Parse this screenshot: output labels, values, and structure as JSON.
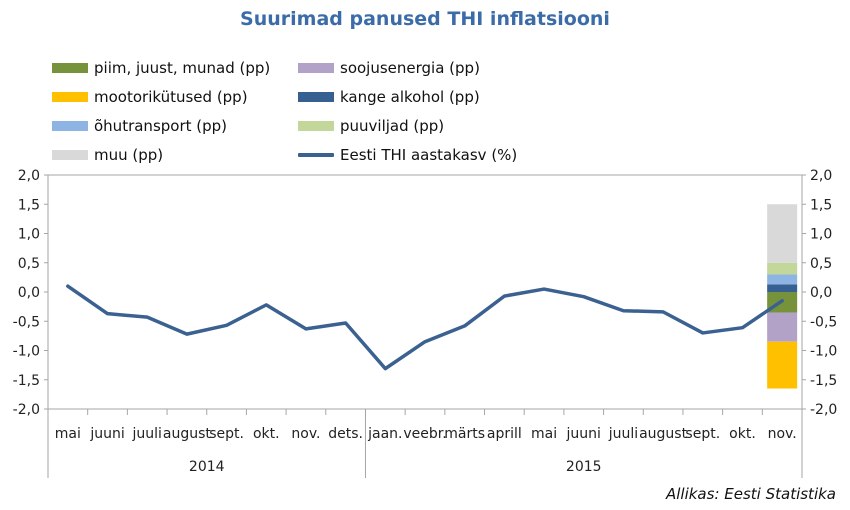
{
  "chart_data": {
    "type": "bar+line",
    "title": "Suurimad panused THI inflatsiooni",
    "source": "Allikas: Eesti Statistika",
    "categories": [
      "mai",
      "juuni",
      "juuli",
      "august",
      "sept.",
      "okt.",
      "nov.",
      "dets.",
      "jaan.",
      "veebr.",
      "märts",
      "aprill",
      "mai",
      "juuni",
      "juuli",
      "august",
      "sept.",
      "okt.",
      "nov."
    ],
    "year_groups": [
      {
        "label": "2014",
        "start_index": 0,
        "end_index": 7
      },
      {
        "label": "2015",
        "start_index": 8,
        "end_index": 18
      }
    ],
    "ylim": [
      -2.0,
      2.0
    ],
    "y_ticks": [
      "2,0",
      "1,5",
      "1,0",
      "0,5",
      "0,0",
      "-0,5",
      "-1,0",
      "-1,5",
      "-2,0"
    ],
    "y_tick_values": [
      2.0,
      1.5,
      1.0,
      0.5,
      0.0,
      -0.5,
      -1.0,
      -1.5,
      -2.0
    ],
    "grid": false,
    "legend_placement": "top",
    "stacked_bar": {
      "category_index": 18,
      "segments": [
        {
          "name": "piim, juust, munad (pp)",
          "value": -0.35,
          "color": "#76933C"
        },
        {
          "name": "soojusenergia (pp)",
          "value": -0.5,
          "color": "#B3A2C7"
        },
        {
          "name": "mootorikütused (pp)",
          "value": -0.8,
          "color": "#FFC000"
        },
        {
          "name": "kange alkohol (pp)",
          "value": 0.13,
          "color": "#376092"
        },
        {
          "name": "õhutransport (pp)",
          "value": 0.17,
          "color": "#8DB4E2"
        },
        {
          "name": "puuviljad (pp)",
          "value": 0.2,
          "color": "#C4D79B"
        },
        {
          "name": "muu (pp)",
          "value": 1.0,
          "color": "#D9D9D9"
        }
      ]
    },
    "line_series": {
      "name": "Eesti THI aastakasv (%)",
      "color": "#3B6191",
      "values": [
        0.1,
        -0.37,
        -0.43,
        -0.72,
        -0.57,
        -0.22,
        -0.63,
        -0.53,
        -1.31,
        -0.85,
        -0.58,
        -0.07,
        0.05,
        -0.08,
        -0.32,
        -0.34,
        -0.7,
        -0.61,
        -0.15
      ]
    }
  },
  "legend": [
    {
      "label": "piim, juust, munad (pp)",
      "color": "#76933C",
      "kind": "bar"
    },
    {
      "label": "soojusenergia (pp)",
      "color": "#B3A2C7",
      "kind": "bar"
    },
    {
      "label": "mootorikütused (pp)",
      "color": "#FFC000",
      "kind": "bar"
    },
    {
      "label": "kange alkohol (pp)",
      "color": "#376092",
      "kind": "bar"
    },
    {
      "label": "õhutransport (pp)",
      "color": "#8DB4E2",
      "kind": "bar"
    },
    {
      "label": "puuviljad (pp)",
      "color": "#C4D79B",
      "kind": "bar"
    },
    {
      "label": "muu (pp)",
      "color": "#D9D9D9",
      "kind": "bar"
    },
    {
      "label": "Eesti THI aastakasv (%)",
      "color": "#3B6191",
      "kind": "line"
    }
  ]
}
